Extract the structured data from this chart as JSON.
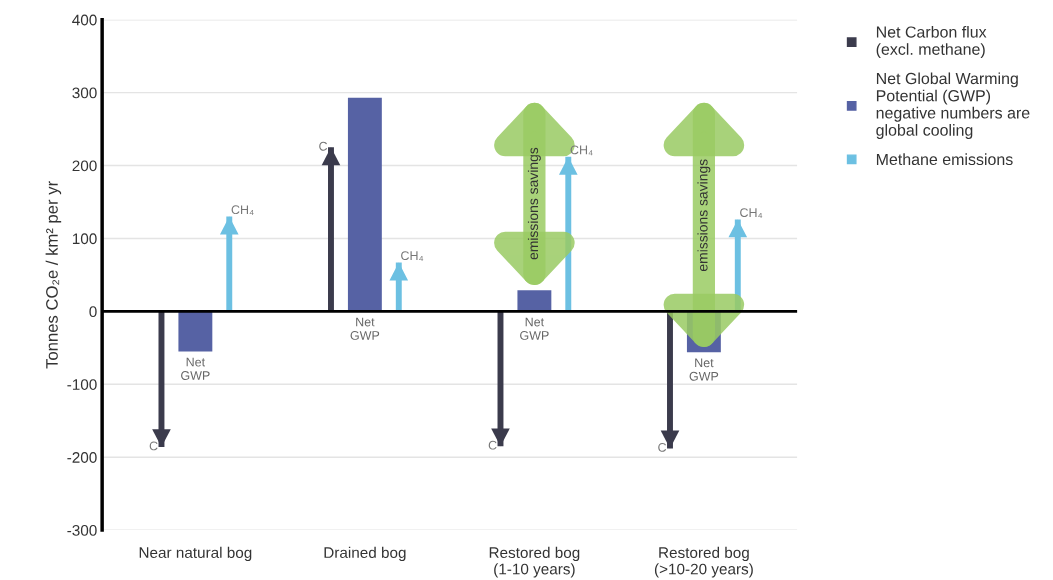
{
  "chart_data": {
    "type": "bar",
    "ylabel": "Tonnes CO₂e / km² per yr",
    "categories": [
      "Near natural bog",
      "Drained bog",
      "Restored bog\n(1-10 years)",
      "Restored bog\n(>10-20 years)"
    ],
    "series": [
      {
        "name": "Net Carbon flux\n(excl. methane)",
        "color": "#3b3b4c",
        "marker": "triangle",
        "values": [
          -186,
          225,
          -185,
          -188
        ],
        "value_labels": [
          "C",
          "C",
          "C",
          "C"
        ]
      },
      {
        "name": "Net Global Warming\nPotential (GWP)\nnegative numbers are\nglobal cooling",
        "color": "#5662a4",
        "values": [
          -55,
          293,
          29,
          -56
        ],
        "value_labels": [
          "Net\nGWP",
          "Net\nGWP",
          "Net\nGWP",
          "Net\nGWP"
        ]
      },
      {
        "name": "Methane emissions",
        "color": "#6cc0e2",
        "marker": "triangle",
        "values": [
          130,
          67,
          212,
          126
        ],
        "value_labels": [
          "CH₄",
          "CH₄",
          "CH₄",
          "CH₄"
        ]
      }
    ],
    "annotations": [
      "emissions savings",
      "emissions savings"
    ],
    "ylim": [
      -300,
      400
    ],
    "yticks": [
      -300,
      -200,
      -100,
      0,
      100,
      200,
      300,
      400
    ],
    "ref_lines": [
      {
        "axis": "y",
        "value": 0,
        "color": "#000000"
      }
    ],
    "grid": "y",
    "legend": "top right"
  }
}
